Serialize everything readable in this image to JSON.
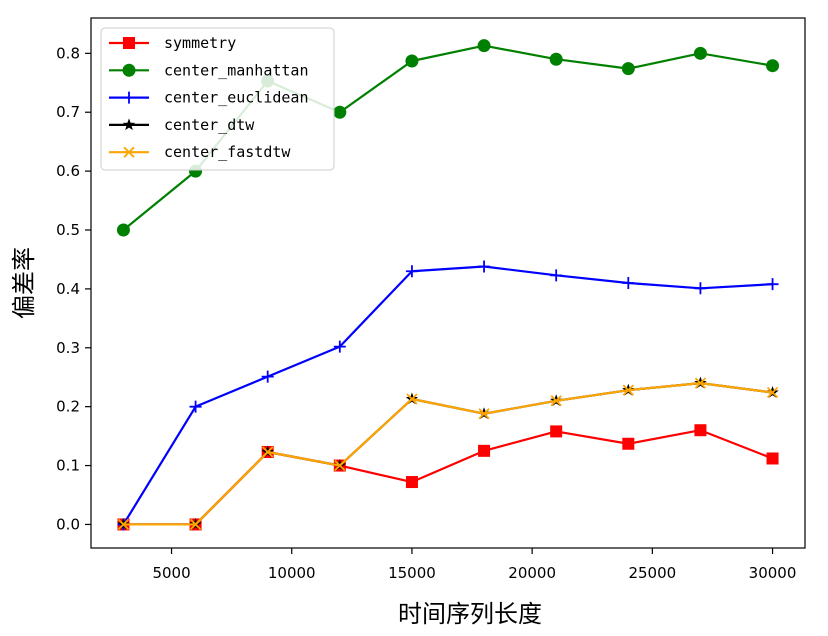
{
  "chart_data": {
    "type": "line",
    "xlabel": "时间序列长度",
    "ylabel": "偏差率",
    "xlim": [
      1650,
      31350
    ],
    "ylim": [
      -0.04,
      0.86
    ],
    "xticks": [
      5000,
      10000,
      15000,
      20000,
      25000,
      30000
    ],
    "yticks": [
      0.0,
      0.1,
      0.2,
      0.3,
      0.4,
      0.5,
      0.6,
      0.7,
      0.8
    ],
    "grid": false,
    "legend_position": "top-left",
    "x": [
      3000,
      6000,
      9000,
      12000,
      15000,
      18000,
      21000,
      24000,
      27000,
      30000
    ],
    "series": [
      {
        "name": "symmetry",
        "color": "#ff0000",
        "marker": "square",
        "values": [
          0.0,
          0.0,
          0.123,
          0.1,
          0.072,
          0.125,
          0.158,
          0.137,
          0.16,
          0.112
        ]
      },
      {
        "name": "center_manhattan",
        "color": "#008000",
        "marker": "circle",
        "values": [
          0.5,
          0.6,
          0.753,
          0.7,
          0.787,
          0.813,
          0.79,
          0.774,
          0.8,
          0.779
        ]
      },
      {
        "name": "center_euclidean",
        "color": "#0000ff",
        "marker": "plus",
        "values": [
          0.0,
          0.2,
          0.251,
          0.302,
          0.43,
          0.438,
          0.423,
          0.41,
          0.401,
          0.408
        ]
      },
      {
        "name": "center_dtw",
        "color": "#000000",
        "marker": "star",
        "values": [
          0.0,
          0.0,
          0.123,
          0.1,
          0.213,
          0.188,
          0.21,
          0.228,
          0.24,
          0.224
        ]
      },
      {
        "name": "center_fastdtw",
        "color": "#ffa500",
        "marker": "x",
        "values": [
          0.0,
          0.0,
          0.123,
          0.1,
          0.213,
          0.188,
          0.21,
          0.228,
          0.24,
          0.224
        ]
      }
    ]
  }
}
